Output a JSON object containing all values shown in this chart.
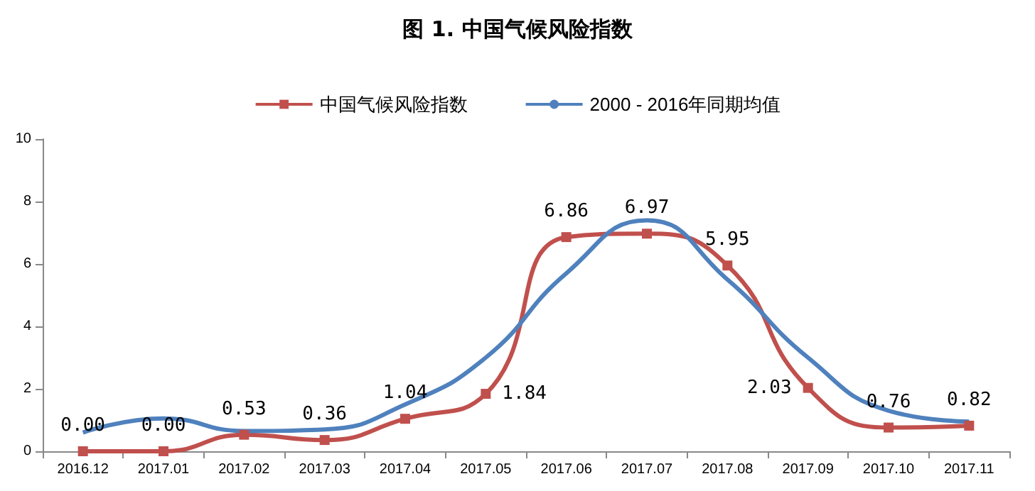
{
  "chart_data": {
    "type": "line",
    "title": "图 1. 中国气候风险指数",
    "categories": [
      "2016.12",
      "2017.01",
      "2017.02",
      "2017.03",
      "2017.04",
      "2017.05",
      "2017.06",
      "2017.07",
      "2017.08",
      "2017.09",
      "2017.10",
      "2017.11"
    ],
    "series": [
      {
        "name": "中国气候风险指数",
        "color": "#c0504d",
        "marker": "square",
        "values": [
          0.0,
          0.0,
          0.53,
          0.36,
          1.04,
          1.84,
          6.86,
          6.97,
          5.95,
          2.03,
          0.76,
          0.82
        ],
        "value_labels": [
          "0.00",
          "0.00",
          "0.53",
          "0.36",
          "1.04",
          "1.84",
          "6.86",
          "6.97",
          "5.95",
          "2.03",
          "0.76",
          "0.82"
        ]
      },
      {
        "name": "2000 - 2016年同期均值",
        "color": "#4f81bd",
        "marker": "none",
        "values": [
          0.6,
          1.05,
          0.65,
          0.7,
          1.5,
          3.0,
          5.7,
          7.4,
          5.5,
          3.0,
          1.3,
          0.95
        ]
      }
    ],
    "ylim": [
      0,
      10
    ],
    "yticks": [
      0,
      2,
      4,
      6,
      8,
      10
    ],
    "grid": false,
    "legend": "top"
  }
}
